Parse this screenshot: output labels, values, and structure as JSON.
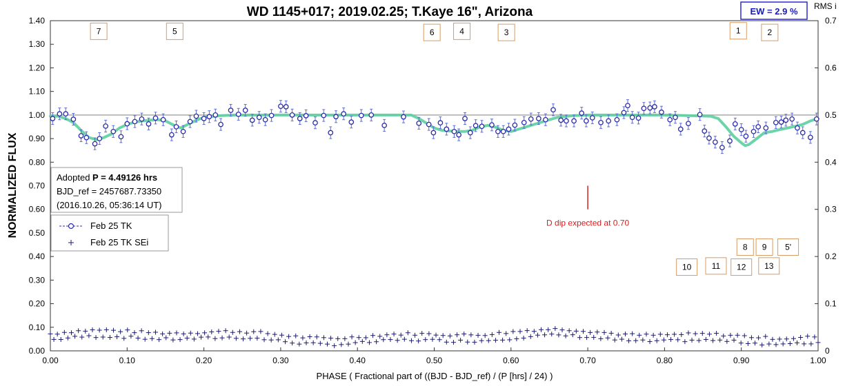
{
  "chart_data": {
    "type": "scatter",
    "title": "WD 1145+017; 2019.02.25; T.Kaye 16\", Arizona",
    "xlabel": "PHASE ( Fractional part of ((BJD - BJD_ref) / (P [hrs] / 24) )",
    "ylabel": "NORMALIZED FLUX",
    "y2label": "RMS i",
    "xlim": [
      0,
      1
    ],
    "ylim": [
      0,
      1.4
    ],
    "y2lim": [
      0,
      0.7
    ],
    "xticks": [
      "0.00",
      "0.10",
      "0.20",
      "0.30",
      "0.40",
      "0.50",
      "0.60",
      "0.70",
      "0.80",
      "0.90",
      "1.00"
    ],
    "yticks": [
      "0.00",
      "0.10",
      "0.20",
      "0.30",
      "0.40",
      "0.50",
      "0.60",
      "0.70",
      "0.80",
      "0.90",
      "1.00",
      "1.10",
      "1.20",
      "1.30",
      "1.40"
    ],
    "y2ticks": [
      "0",
      "0.1",
      "0.2",
      "0.3",
      "0.4",
      "0.5",
      "0.6",
      "0.7"
    ],
    "ew_box": "EW =  2.9 %",
    "info_box": {
      "line1_prefix": "Adopted ",
      "line1_bold": "P = 4.49126 hrs",
      "line2": "BJD_ref = 2457687.73350",
      "line3": "(2016.10.26, 05:36:14 UT)"
    },
    "legend": [
      {
        "name": "Feb 25 TK",
        "marker": "circle"
      },
      {
        "name": "Feb 25 TK SEi",
        "marker": "plus"
      }
    ],
    "annotation": {
      "text": "D dip expected at 0.70",
      "x": 0.7,
      "y_from": 0.6,
      "y_to": 0.7
    },
    "reference_line_y": 1.0,
    "labels": [
      {
        "text": "7",
        "x": 0.063,
        "y": 1.355
      },
      {
        "text": "5",
        "x": 0.162,
        "y": 1.355
      },
      {
        "text": "6",
        "x": 0.497,
        "y": 1.35
      },
      {
        "text": "4",
        "x": 0.536,
        "y": 1.355
      },
      {
        "text": "3",
        "x": 0.594,
        "y": 1.35
      },
      {
        "text": "1",
        "x": 0.896,
        "y": 1.357
      },
      {
        "text": "2",
        "x": 0.937,
        "y": 1.35
      },
      {
        "text": "8",
        "x": 0.905,
        "y": 0.44
      },
      {
        "text": "9",
        "x": 0.93,
        "y": 0.44
      },
      {
        "text": "5'",
        "x": 0.961,
        "y": 0.44
      },
      {
        "text": "10",
        "x": 0.829,
        "y": 0.355
      },
      {
        "text": "11",
        "x": 0.867,
        "y": 0.36
      },
      {
        "text": "12",
        "x": 0.9,
        "y": 0.355
      },
      {
        "text": "13",
        "x": 0.936,
        "y": 0.36
      }
    ],
    "series": [
      {
        "name": "Feb 25 TK",
        "x": [
          0.003,
          0.012,
          0.02,
          0.03,
          0.04,
          0.047,
          0.058,
          0.064,
          0.072,
          0.082,
          0.092,
          0.1,
          0.11,
          0.119,
          0.128,
          0.137,
          0.147,
          0.158,
          0.164,
          0.173,
          0.182,
          0.19,
          0.2,
          0.207,
          0.215,
          0.222,
          0.235,
          0.245,
          0.254,
          0.263,
          0.272,
          0.28,
          0.288,
          0.3,
          0.307,
          0.315,
          0.325,
          0.333,
          0.345,
          0.356,
          0.365,
          0.372,
          0.382,
          0.392,
          0.405,
          0.418,
          0.435,
          0.46,
          0.48,
          0.493,
          0.499,
          0.508,
          0.516,
          0.526,
          0.532,
          0.54,
          0.547,
          0.554,
          0.562,
          0.575,
          0.583,
          0.59,
          0.597,
          0.605,
          0.617,
          0.626,
          0.636,
          0.645,
          0.655,
          0.665,
          0.672,
          0.682,
          0.692,
          0.698,
          0.706,
          0.717,
          0.727,
          0.738,
          0.747,
          0.752,
          0.758,
          0.766,
          0.773,
          0.781,
          0.787,
          0.796,
          0.807,
          0.814,
          0.821,
          0.831,
          0.846,
          0.852,
          0.858,
          0.866,
          0.875,
          0.885,
          0.892,
          0.9,
          0.906,
          0.916,
          0.922,
          0.932,
          0.945,
          0.952,
          0.958,
          0.966,
          0.973,
          0.98,
          0.99,
          0.998
        ],
        "y": [
          0.985,
          1.005,
          1.005,
          0.982,
          0.912,
          0.904,
          0.878,
          0.9,
          0.953,
          0.93,
          0.908,
          0.963,
          0.972,
          0.983,
          0.962,
          0.987,
          0.98,
          0.916,
          0.95,
          0.93,
          0.972,
          0.995,
          0.985,
          0.993,
          1.0,
          0.96,
          1.02,
          1.003,
          1.02,
          0.978,
          0.99,
          0.98,
          0.998,
          1.037,
          1.035,
          1.0,
          0.985,
          0.997,
          0.967,
          0.998,
          0.925,
          0.993,
          1.005,
          0.97,
          0.998,
          1.0,
          0.956,
          0.992,
          0.965,
          0.96,
          0.925,
          0.967,
          0.94,
          0.93,
          0.916,
          0.985,
          0.925,
          0.955,
          0.952,
          0.958,
          0.93,
          0.93,
          0.94,
          0.957,
          0.968,
          0.983,
          0.985,
          0.98,
          1.022,
          0.978,
          0.975,
          0.975,
          1.008,
          0.975,
          0.988,
          0.968,
          0.975,
          0.98,
          1.01,
          1.04,
          0.99,
          0.987,
          1.028,
          1.03,
          1.035,
          1.012,
          0.98,
          0.99,
          0.94,
          0.964,
          1.002,
          0.932,
          0.902,
          0.885,
          0.862,
          0.89,
          0.962,
          0.938,
          0.91,
          0.93,
          0.95,
          0.945,
          0.968,
          0.97,
          0.978,
          0.983,
          0.945,
          0.925,
          0.905,
          0.983
        ],
        "yerr": 0.025
      },
      {
        "name": "Feb 25 TK SEi",
        "axis": "right",
        "x_start": 0.0,
        "x_end": 1.0,
        "count": 220,
        "upper_mean": 0.036,
        "lower_mean": 0.023
      }
    ],
    "fit_curve": {
      "name": "model",
      "x": [
        0.0,
        0.01,
        0.02,
        0.03,
        0.04,
        0.05,
        0.06,
        0.07,
        0.08,
        0.09,
        0.1,
        0.11,
        0.12,
        0.13,
        0.14,
        0.15,
        0.16,
        0.17,
        0.18,
        0.19,
        0.2,
        0.22,
        0.24,
        0.26,
        0.3,
        0.4,
        0.47,
        0.48,
        0.49,
        0.5,
        0.51,
        0.52,
        0.53,
        0.54,
        0.55,
        0.56,
        0.57,
        0.58,
        0.59,
        0.6,
        0.61,
        0.62,
        0.63,
        0.64,
        0.65,
        0.66,
        0.68,
        0.7,
        0.8,
        0.86,
        0.87,
        0.88,
        0.89,
        0.9,
        0.905,
        0.91,
        0.92,
        0.93,
        0.94,
        0.95,
        0.96,
        0.97,
        0.98,
        0.99,
        1.0
      ],
      "y": [
        0.995,
        0.995,
        0.985,
        0.968,
        0.935,
        0.905,
        0.895,
        0.905,
        0.92,
        0.945,
        0.96,
        0.97,
        0.975,
        0.978,
        0.98,
        0.975,
        0.958,
        0.945,
        0.962,
        0.978,
        0.99,
        0.997,
        1.0,
        1.0,
        1.0,
        1.0,
        1.0,
        0.985,
        0.965,
        0.945,
        0.935,
        0.932,
        0.93,
        0.93,
        0.936,
        0.95,
        0.956,
        0.948,
        0.935,
        0.93,
        0.94,
        0.95,
        0.96,
        0.97,
        0.98,
        0.99,
        0.997,
        1.0,
        1.0,
        0.995,
        0.985,
        0.95,
        0.91,
        0.882,
        0.87,
        0.875,
        0.9,
        0.925,
        0.93,
        0.938,
        0.945,
        0.952,
        0.96,
        0.975,
        0.985
      ]
    }
  }
}
